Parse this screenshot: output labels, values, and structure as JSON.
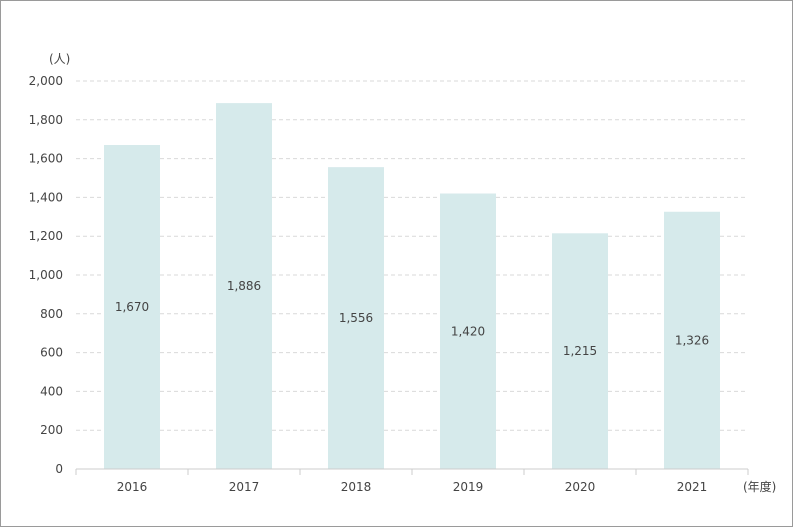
{
  "chart_data": {
    "type": "bar",
    "categories": [
      "2016",
      "2017",
      "2018",
      "2019",
      "2020",
      "2021"
    ],
    "values": [
      1670,
      1886,
      1556,
      1420,
      1215,
      1326
    ],
    "value_labels": [
      "1,670",
      "1,886",
      "1,556",
      "1,420",
      "1,215",
      "1,326"
    ],
    "title": "",
    "ylabel": "(人)",
    "xlabel": "(年度)",
    "ylim": [
      0,
      2000
    ],
    "yticks": [
      0,
      200,
      400,
      600,
      800,
      1000,
      1200,
      1400,
      1600,
      1800,
      2000
    ],
    "ytick_labels": [
      "0",
      "200",
      "400",
      "600",
      "800",
      "1,000",
      "1,200",
      "1,400",
      "1,600",
      "1,800",
      "2,000"
    ],
    "grid": true,
    "legend": "none",
    "colors": {
      "bar": "#d6eaeb",
      "grid": "#d9d9d9",
      "axis": "#cccccc"
    }
  }
}
